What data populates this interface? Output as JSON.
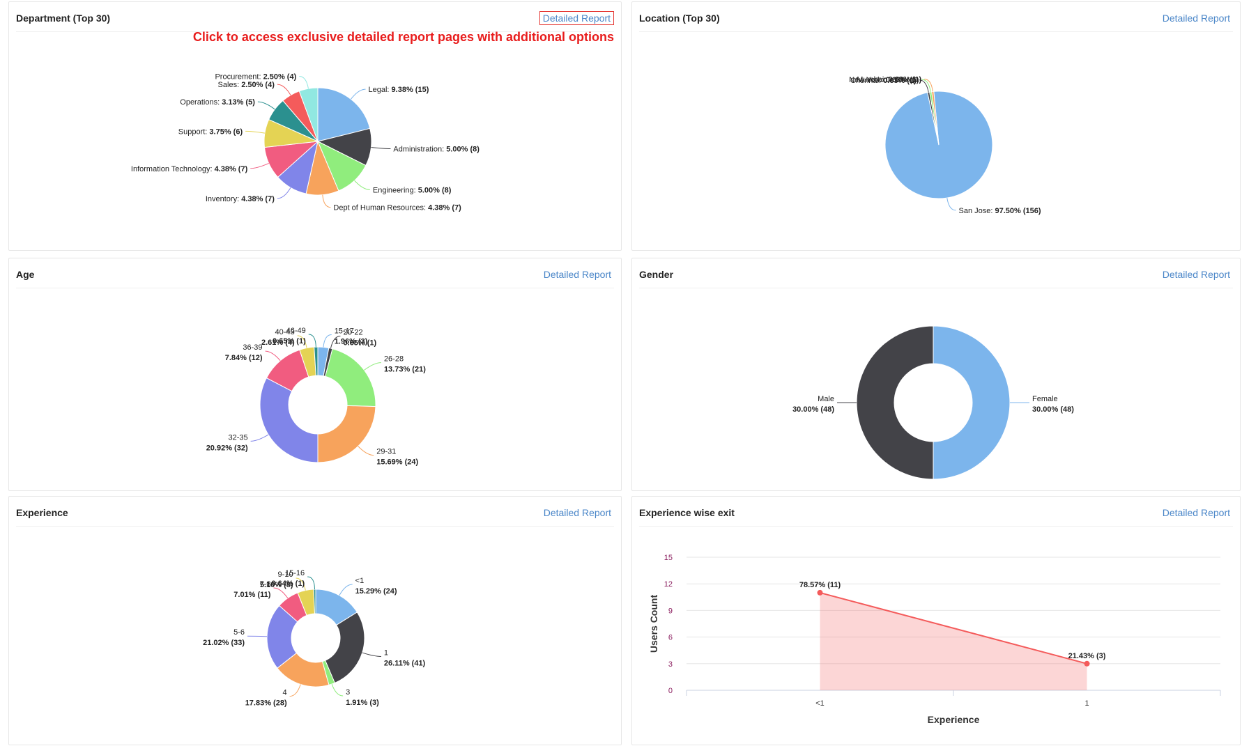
{
  "promo_text": "Click to access exclusive detailed report pages with additional options",
  "panels": {
    "department": {
      "title": "Department (Top 30)",
      "link": "Detailed Report"
    },
    "location": {
      "title": "Location (Top 30)",
      "link": "Detailed Report"
    },
    "age": {
      "title": "Age",
      "link": "Detailed Report"
    },
    "gender": {
      "title": "Gender",
      "link": "Detailed Report"
    },
    "experience": {
      "title": "Experience",
      "link": "Detailed Report"
    },
    "exit": {
      "title": "Experience wise exit",
      "link": "Detailed Report"
    }
  },
  "chart_data": [
    {
      "id": "department",
      "type": "pie",
      "slices": [
        {
          "name": "Legal",
          "pct": "9.38%",
          "count": 15,
          "color": "#7cb5ec"
        },
        {
          "name": "Administration",
          "pct": "5.00%",
          "count": 8,
          "color": "#434348"
        },
        {
          "name": "Engineering",
          "pct": "5.00%",
          "count": 8,
          "color": "#90ed7d"
        },
        {
          "name": "Dept of Human Resources",
          "pct": "4.38%",
          "count": 7,
          "color": "#f7a35c"
        },
        {
          "name": "Inventory",
          "pct": "4.38%",
          "count": 7,
          "color": "#8085e9"
        },
        {
          "name": "Information Technology",
          "pct": "4.38%",
          "count": 7,
          "color": "#f15c80"
        },
        {
          "name": "Support",
          "pct": "3.75%",
          "count": 6,
          "color": "#e4d354"
        },
        {
          "name": "Operations",
          "pct": "3.13%",
          "count": 5,
          "color": "#2b908f"
        },
        {
          "name": "Sales",
          "pct": "2.50%",
          "count": 4,
          "color": "#f45b5b"
        },
        {
          "name": "Procurement",
          "pct": "2.50%",
          "count": 4,
          "color": "#91e8e1"
        }
      ]
    },
    {
      "id": "location",
      "type": "pie",
      "slices": [
        {
          "name": "San Jose",
          "pct": "97.50%",
          "count": 156,
          "color": "#7cb5ec"
        },
        {
          "name": "Chennai",
          "pct": "0.63%",
          "count": 1,
          "color": "#434348"
        },
        {
          "name": "New York",
          "pct": "0.63%",
          "count": 1,
          "color": "#90ed7d"
        },
        {
          "name": "Mumbai",
          "pct": "0.63%",
          "count": 1,
          "color": "#f7a35c"
        }
      ]
    },
    {
      "id": "age",
      "type": "pie",
      "slices": [
        {
          "name": "15-17",
          "pct": "1.96%",
          "count": 3,
          "color": "#7cb5ec"
        },
        {
          "name": "20-22",
          "pct": "0.65%",
          "count": 1,
          "color": "#434348"
        },
        {
          "name": "26-28",
          "pct": "13.73%",
          "count": 21,
          "color": "#90ed7d"
        },
        {
          "name": "29-31",
          "pct": "15.69%",
          "count": 24,
          "color": "#f7a35c"
        },
        {
          "name": "32-35",
          "pct": "20.92%",
          "count": 32,
          "color": "#8085e9"
        },
        {
          "name": "36-39",
          "pct": "7.84%",
          "count": 12,
          "color": "#f15c80"
        },
        {
          "name": "40-43",
          "pct": "2.61%",
          "count": 4,
          "color": "#e4d354"
        },
        {
          "name": "46-49",
          "pct": "0.65%",
          "count": 1,
          "color": "#2b908f"
        }
      ]
    },
    {
      "id": "gender",
      "type": "pie",
      "slices": [
        {
          "name": "Female",
          "pct": "30.00%",
          "count": 48,
          "color": "#7cb5ec"
        },
        {
          "name": "Male",
          "pct": "30.00%",
          "count": 48,
          "color": "#434348"
        }
      ]
    },
    {
      "id": "experience",
      "type": "pie",
      "slices": [
        {
          "name": "<1",
          "pct": "15.29%",
          "count": 24,
          "color": "#7cb5ec"
        },
        {
          "name": "1",
          "pct": "26.11%",
          "count": 41,
          "color": "#434348"
        },
        {
          "name": "3",
          "pct": "1.91%",
          "count": 3,
          "color": "#90ed7d"
        },
        {
          "name": "4",
          "pct": "17.83%",
          "count": 28,
          "color": "#f7a35c"
        },
        {
          "name": "5-6",
          "pct": "21.02%",
          "count": 33,
          "color": "#8085e9"
        },
        {
          "name": "7-8",
          "pct": "7.01%",
          "count": 11,
          "color": "#f15c80"
        },
        {
          "name": "9-10",
          "pct": "5.10%",
          "count": 8,
          "color": "#e4d354"
        },
        {
          "name": "15-16",
          "pct": "0.64%",
          "count": 1,
          "color": "#2b908f"
        }
      ]
    },
    {
      "id": "exit",
      "type": "area",
      "categories": [
        "<1",
        "1"
      ],
      "values": [
        11,
        3
      ],
      "labels": [
        "78.57% (11)",
        "21.43% (3)"
      ],
      "xlabel": "Experience",
      "ylabel": "Users Count",
      "ylim": [
        0,
        15
      ],
      "yticks": [
        0,
        3,
        6,
        9,
        12,
        15
      ],
      "color": "#f45b5b",
      "grid": true
    }
  ]
}
